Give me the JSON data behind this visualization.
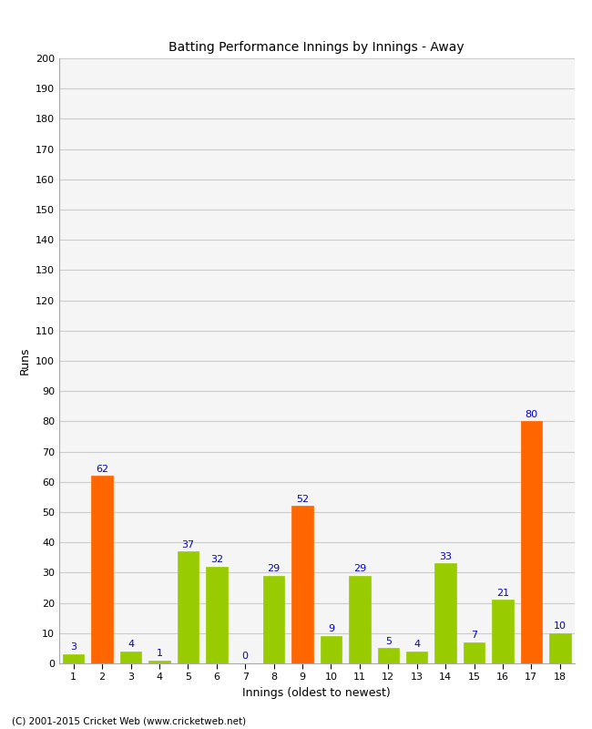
{
  "title": "Batting Performance Innings by Innings - Away",
  "xlabel": "Innings (oldest to newest)",
  "ylabel": "Runs",
  "innings": [
    1,
    2,
    3,
    4,
    5,
    6,
    7,
    8,
    9,
    10,
    11,
    12,
    13,
    14,
    15,
    16,
    17,
    18
  ],
  "values": [
    3,
    62,
    4,
    1,
    37,
    32,
    0,
    29,
    52,
    9,
    29,
    5,
    4,
    33,
    7,
    21,
    80,
    10
  ],
  "colors": [
    "#99cc00",
    "#ff6600",
    "#99cc00",
    "#99cc00",
    "#99cc00",
    "#99cc00",
    "#99cc00",
    "#99cc00",
    "#ff6600",
    "#99cc00",
    "#99cc00",
    "#99cc00",
    "#99cc00",
    "#99cc00",
    "#99cc00",
    "#99cc00",
    "#ff6600",
    "#99cc00"
  ],
  "ylim": [
    0,
    200
  ],
  "yticks": [
    0,
    10,
    20,
    30,
    40,
    50,
    60,
    70,
    80,
    90,
    100,
    110,
    120,
    130,
    140,
    150,
    160,
    170,
    180,
    190,
    200
  ],
  "label_color": "#0000cc",
  "label_fontsize": 8,
  "axis_fontsize": 8,
  "title_fontsize": 10,
  "footer": "(C) 2001-2015 Cricket Web (www.cricketweb.net)",
  "background_color": "#ffffff",
  "plot_bg_color": "#f5f5f5",
  "grid_color": "#cccccc",
  "bar_width": 0.75
}
